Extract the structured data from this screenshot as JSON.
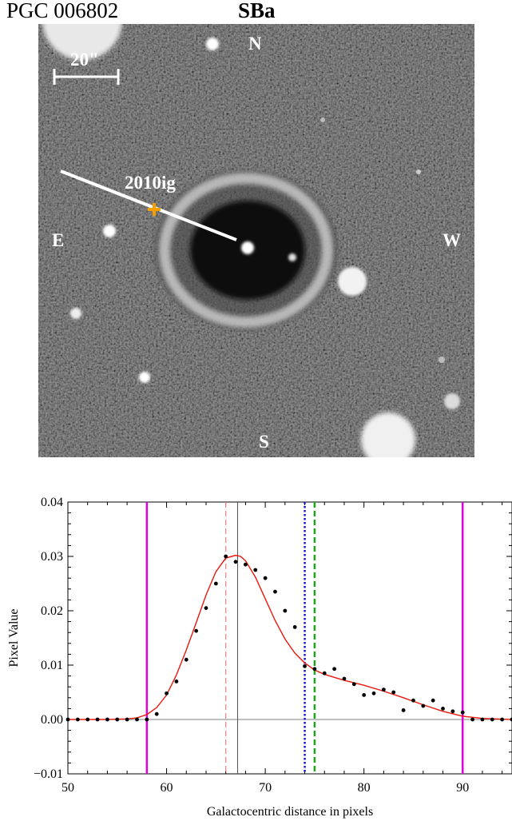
{
  "header": {
    "object_name": "PGC 006802",
    "morph_type": "SBa"
  },
  "image": {
    "compass": {
      "north": "N",
      "south": "S",
      "east": "E",
      "west": "W"
    },
    "scale_bar_label": "20\"",
    "supernova_label": "2010ig",
    "colors": {
      "marker": "#f5a000",
      "line": "#ffffff"
    }
  },
  "chart_data": {
    "type": "scatter",
    "title": "",
    "xlabel": "Galactocentric distance in pixels",
    "ylabel": "Pixel Value",
    "xlim": [
      50,
      95
    ],
    "ylim": [
      -0.01,
      0.04
    ],
    "xticks": [
      50,
      60,
      70,
      80,
      90
    ],
    "yticks": [
      -0.01,
      0.0,
      0.01,
      0.02,
      0.03,
      0.04
    ],
    "ytick_labels": [
      "−0.01",
      "0.00",
      "0.01",
      "0.02",
      "0.03",
      "0.04"
    ],
    "series": [
      {
        "kind": "points",
        "color": "#000000",
        "x": [
          50,
          51,
          52,
          53,
          54,
          55,
          56,
          57,
          58,
          59,
          60,
          61,
          62,
          63,
          64,
          65,
          66,
          67,
          68,
          69,
          70,
          71,
          72,
          73,
          74,
          75,
          76,
          77,
          78,
          79,
          80,
          81,
          82,
          83,
          84,
          85,
          86,
          87,
          88,
          89,
          90,
          91,
          92,
          93,
          94,
          95
        ],
        "y": [
          0.0,
          0.0,
          0.0,
          0.0,
          0.0,
          0.0,
          0.0,
          0.0,
          0.0,
          0.001,
          0.0048,
          0.007,
          0.011,
          0.0163,
          0.0205,
          0.025,
          0.03,
          0.029,
          0.0285,
          0.0275,
          0.026,
          0.0235,
          0.02,
          0.017,
          0.0098,
          0.0093,
          0.0085,
          0.0093,
          0.0075,
          0.0065,
          0.0045,
          0.0048,
          0.0055,
          0.005,
          0.0017,
          0.0035,
          0.0025,
          0.0035,
          0.002,
          0.0015,
          0.0013,
          0.0,
          0.0,
          0.0,
          0.0,
          0.0
        ]
      },
      {
        "kind": "fit-curve",
        "color": "#e8180c",
        "x": [
          50,
          54,
          56,
          57,
          58,
          59,
          60,
          61,
          62,
          63,
          64,
          65,
          66,
          67,
          67.5,
          68,
          69,
          70,
          71,
          72,
          73,
          74,
          75,
          76,
          78,
          80,
          82,
          84,
          86,
          88,
          90,
          92,
          95
        ],
        "y": [
          0.0,
          0.0,
          0.0001,
          0.0003,
          0.0009,
          0.0022,
          0.0045,
          0.0082,
          0.0128,
          0.0178,
          0.0229,
          0.0272,
          0.0297,
          0.0302,
          0.03,
          0.0292,
          0.0262,
          0.0222,
          0.0182,
          0.0148,
          0.0122,
          0.0104,
          0.0091,
          0.0083,
          0.0072,
          0.0063,
          0.0052,
          0.004,
          0.0027,
          0.0015,
          0.0006,
          0.0002,
          0.0
        ]
      }
    ],
    "vlines": [
      {
        "x": 58,
        "color": "#e000e0",
        "style": "solid",
        "width": 2.5
      },
      {
        "x": 90,
        "color": "#e000e0",
        "style": "solid",
        "width": 2.5
      },
      {
        "x": 66,
        "color": "#f08080",
        "style": "dashed",
        "width": 1.2
      },
      {
        "x": 67.2,
        "color": "#555555",
        "style": "solid",
        "width": 1
      },
      {
        "x": 74,
        "color": "#1a1ad6",
        "style": "dotted",
        "width": 2.5
      },
      {
        "x": 75,
        "color": "#1aa81a",
        "style": "dashed",
        "width": 2.5
      }
    ]
  }
}
